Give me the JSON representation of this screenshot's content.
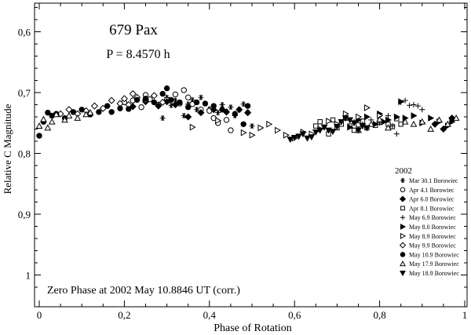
{
  "chart_data": {
    "type": "scatter",
    "title": "679 Pax",
    "subtitle": "P = 8.4570 h",
    "xlabel": "Phase of Rotation",
    "ylabel": "Relative C Magnitude",
    "xlim": [
      0,
      1
    ],
    "ylim": [
      0.55,
      1.05
    ],
    "y_inverted": true,
    "grid": false,
    "x_ticks": [
      0,
      0.2,
      0.4,
      0.6,
      0.8,
      1
    ],
    "x_tick_labels": [
      "0",
      "0,2",
      "0,4",
      "0,6",
      "0,8",
      "1"
    ],
    "y_ticks": [
      0.6,
      0.7,
      0.8,
      0.9,
      1.0
    ],
    "y_tick_labels": [
      "0,6",
      "0,7",
      "0,8",
      "0,9",
      "1"
    ],
    "annotation": "Zero Phase at 2002 May 10.8846 UT (corr.)",
    "legend_title": "2002",
    "legend_position": "right",
    "series": [
      {
        "name": "Mar 30.1 Borowiec",
        "marker": "asterisk",
        "points": [
          [
            0.29,
            0.742
          ],
          [
            0.3,
            0.708
          ],
          [
            0.31,
            0.721
          ],
          [
            0.32,
            0.713
          ],
          [
            0.34,
            0.738
          ],
          [
            0.35,
            0.719
          ],
          [
            0.36,
            0.712
          ],
          [
            0.37,
            0.728
          ],
          [
            0.38,
            0.708
          ],
          [
            0.4,
            0.727
          ],
          [
            0.42,
            0.733
          ],
          [
            0.43,
            0.72
          ],
          [
            0.44,
            0.731
          ],
          [
            0.45,
            0.724
          ],
          [
            0.46,
            0.738
          ],
          [
            0.47,
            0.728
          ],
          [
            0.48,
            0.719
          ],
          [
            0.49,
            0.733
          ],
          [
            0.5,
            0.755
          ]
        ]
      },
      {
        "name": "Apr 4.1 Borowiec",
        "marker": "circle-open",
        "points": [
          [
            0.2,
            0.716
          ],
          [
            0.22,
            0.713
          ],
          [
            0.24,
            0.724
          ],
          [
            0.25,
            0.704
          ],
          [
            0.26,
            0.711
          ],
          [
            0.28,
            0.72
          ],
          [
            0.3,
            0.712
          ],
          [
            0.32,
            0.703
          ],
          [
            0.33,
            0.718
          ],
          [
            0.34,
            0.696
          ],
          [
            0.35,
            0.708
          ],
          [
            0.36,
            0.719
          ],
          [
            0.38,
            0.728
          ],
          [
            0.4,
            0.73
          ],
          [
            0.41,
            0.742
          ],
          [
            0.42,
            0.75
          ],
          [
            0.44,
            0.745
          ],
          [
            0.45,
            0.762
          ]
        ]
      },
      {
        "name": "Apr 6.0 Borowiec",
        "marker": "diamond-filled",
        "points": [
          [
            0.22,
            0.723
          ],
          [
            0.25,
            0.715
          ],
          [
            0.28,
            0.722
          ],
          [
            0.3,
            0.715
          ],
          [
            0.32,
            0.72
          ],
          [
            0.35,
            0.74
          ],
          [
            0.38,
            0.733
          ],
          [
            0.41,
            0.728
          ],
          [
            0.44,
            0.732
          ],
          [
            0.47,
            0.728
          ],
          [
            0.49,
            0.733
          ],
          [
            0.93,
            0.752
          ],
          [
            0.95,
            0.76
          ],
          [
            0.97,
            0.742
          ]
        ]
      },
      {
        "name": "Apr 8.1 Borowiec",
        "marker": "square-open",
        "points": [
          [
            0.65,
            0.755
          ],
          [
            0.66,
            0.748
          ],
          [
            0.68,
            0.768
          ],
          [
            0.69,
            0.745
          ],
          [
            0.7,
            0.758
          ],
          [
            0.71,
            0.752
          ],
          [
            0.72,
            0.742
          ],
          [
            0.73,
            0.755
          ],
          [
            0.74,
            0.762
          ],
          [
            0.75,
            0.753
          ],
          [
            0.76,
            0.747
          ],
          [
            0.77,
            0.758
          ],
          [
            0.79,
            0.754
          ],
          [
            0.8,
            0.749
          ],
          [
            0.82,
            0.752
          ],
          [
            0.83,
            0.756
          ],
          [
            0.84,
            0.743
          ],
          [
            0.85,
            0.752
          ]
        ]
      },
      {
        "name": "May 6.9 Borowiec",
        "marker": "plus",
        "points": [
          [
            0.72,
            0.742
          ],
          [
            0.74,
            0.748
          ],
          [
            0.76,
            0.752
          ],
          [
            0.78,
            0.745
          ],
          [
            0.8,
            0.75
          ],
          [
            0.82,
            0.738
          ],
          [
            0.83,
            0.755
          ],
          [
            0.84,
            0.768
          ],
          [
            0.85,
            0.716
          ],
          [
            0.86,
            0.713
          ],
          [
            0.87,
            0.721
          ],
          [
            0.88,
            0.72
          ],
          [
            0.89,
            0.722
          ],
          [
            0.9,
            0.728
          ]
        ]
      },
      {
        "name": "May 8.0 Borowiec",
        "marker": "triangle-right-filled",
        "points": [
          [
            0.73,
            0.757
          ],
          [
            0.75,
            0.745
          ],
          [
            0.77,
            0.74
          ],
          [
            0.79,
            0.752
          ],
          [
            0.8,
            0.735
          ],
          [
            0.81,
            0.748
          ],
          [
            0.82,
            0.745
          ],
          [
            0.84,
            0.74
          ],
          [
            0.85,
            0.715
          ],
          [
            0.86,
            0.742
          ],
          [
            0.88,
            0.738
          ],
          [
            0.9,
            0.75
          ],
          [
            0.92,
            0.742
          ],
          [
            0.94,
            0.748
          ],
          [
            0.96,
            0.755
          ],
          [
            0.97,
            0.748
          ]
        ]
      },
      {
        "name": "May 8.9 Borowiec",
        "marker": "triangle-right-open",
        "points": [
          [
            0.36,
            0.757
          ],
          [
            0.42,
            0.746
          ],
          [
            0.48,
            0.766
          ],
          [
            0.5,
            0.77
          ],
          [
            0.52,
            0.758
          ],
          [
            0.54,
            0.752
          ],
          [
            0.56,
            0.762
          ],
          [
            0.58,
            0.77
          ],
          [
            0.6,
            0.775
          ],
          [
            0.62,
            0.765
          ],
          [
            0.64,
            0.768
          ],
          [
            0.66,
            0.76
          ],
          [
            0.68,
            0.747
          ],
          [
            0.7,
            0.752
          ],
          [
            0.72,
            0.735
          ],
          [
            0.75,
            0.74
          ],
          [
            0.77,
            0.725
          ],
          [
            0.8,
            0.738
          ]
        ]
      },
      {
        "name": "May 9.9 Borowiec",
        "marker": "diamond-open",
        "points": [
          [
            0.05,
            0.735
          ],
          [
            0.07,
            0.728
          ],
          [
            0.09,
            0.735
          ],
          [
            0.11,
            0.73
          ],
          [
            0.13,
            0.722
          ],
          [
            0.15,
            0.726
          ],
          [
            0.17,
            0.713
          ],
          [
            0.19,
            0.718
          ],
          [
            0.2,
            0.71
          ],
          [
            0.21,
            0.72
          ],
          [
            0.22,
            0.702
          ],
          [
            0.23,
            0.708
          ],
          [
            0.25,
            0.712
          ],
          [
            0.27,
            0.705
          ],
          [
            0.29,
            0.716
          ]
        ]
      },
      {
        "name": "May 10.9 Borowiec",
        "marker": "circle-filled",
        "points": [
          [
            0.0,
            0.771
          ],
          [
            0.01,
            0.748
          ],
          [
            0.02,
            0.733
          ],
          [
            0.03,
            0.738
          ],
          [
            0.04,
            0.735
          ],
          [
            0.06,
            0.742
          ],
          [
            0.08,
            0.732
          ],
          [
            0.1,
            0.728
          ],
          [
            0.12,
            0.736
          ],
          [
            0.14,
            0.732
          ],
          [
            0.16,
            0.722
          ],
          [
            0.17,
            0.732
          ],
          [
            0.19,
            0.726
          ],
          [
            0.21,
            0.727
          ],
          [
            0.23,
            0.712
          ],
          [
            0.25,
            0.71
          ],
          [
            0.27,
            0.716
          ],
          [
            0.29,
            0.702
          ],
          [
            0.3,
            0.693
          ],
          [
            0.31,
            0.712
          ],
          [
            0.33,
            0.716
          ],
          [
            0.35,
            0.724
          ],
          [
            0.37,
            0.716
          ],
          [
            0.39,
            0.718
          ],
          [
            0.41,
            0.722
          ],
          [
            0.43,
            0.728
          ],
          [
            0.46,
            0.735
          ],
          [
            0.48,
            0.752
          ],
          [
            0.49,
            0.722
          ]
        ]
      },
      {
        "name": "May 17.9 Borowiec",
        "marker": "triangle-up-open",
        "points": [
          [
            0.0,
            0.755
          ],
          [
            0.01,
            0.744
          ],
          [
            0.02,
            0.758
          ],
          [
            0.03,
            0.748
          ],
          [
            0.04,
            0.736
          ],
          [
            0.06,
            0.745
          ],
          [
            0.07,
            0.738
          ],
          [
            0.09,
            0.742
          ],
          [
            0.11,
            0.736
          ],
          [
            0.12,
            0.733
          ],
          [
            0.75,
            0.762
          ],
          [
            0.78,
            0.752
          ],
          [
            0.8,
            0.744
          ],
          [
            0.82,
            0.758
          ],
          [
            0.86,
            0.748
          ],
          [
            0.88,
            0.752
          ],
          [
            0.9,
            0.748
          ],
          [
            0.92,
            0.76
          ],
          [
            0.94,
            0.745
          ],
          [
            0.96,
            0.752
          ],
          [
            0.98,
            0.742
          ]
        ]
      },
      {
        "name": "May 18.9 Borowiec",
        "marker": "triangle-down-filled",
        "points": [
          [
            0.59,
            0.777
          ],
          [
            0.6,
            0.774
          ],
          [
            0.61,
            0.772
          ],
          [
            0.62,
            0.768
          ],
          [
            0.63,
            0.775
          ],
          [
            0.64,
            0.773
          ],
          [
            0.65,
            0.765
          ],
          [
            0.66,
            0.762
          ],
          [
            0.67,
            0.757
          ],
          [
            0.68,
            0.762
          ],
          [
            0.69,
            0.764
          ],
          [
            0.7,
            0.756
          ],
          [
            0.71,
            0.748
          ],
          [
            0.72,
            0.742
          ],
          [
            0.73,
            0.745
          ],
          [
            0.74,
            0.75
          ],
          [
            0.75,
            0.762
          ],
          [
            0.76,
            0.755
          ],
          [
            0.77,
            0.758
          ]
        ]
      }
    ]
  }
}
